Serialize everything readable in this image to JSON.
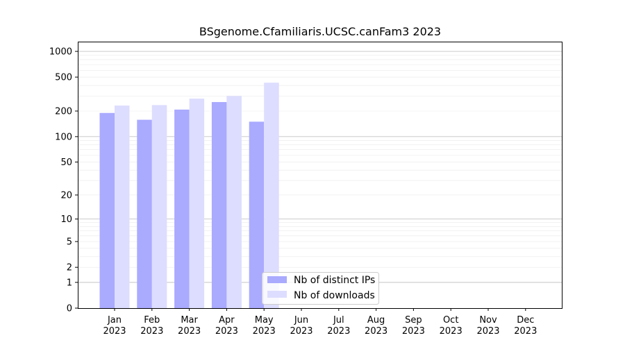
{
  "chart_data": {
    "type": "bar",
    "title": "BSgenome.Cfamiliaris.UCSC.canFam3 2023",
    "xlabel": "",
    "ylabel": "",
    "yscale": "log (log(1+y))",
    "categories": [
      [
        "Jan",
        "2023"
      ],
      [
        "Feb",
        "2023"
      ],
      [
        "Mar",
        "2023"
      ],
      [
        "Apr",
        "2023"
      ],
      [
        "May",
        "2023"
      ],
      [
        "Jun",
        "2023"
      ],
      [
        "Jul",
        "2023"
      ],
      [
        "Aug",
        "2023"
      ],
      [
        "Sep",
        "2023"
      ],
      [
        "Oct",
        "2023"
      ],
      [
        "Nov",
        "2023"
      ],
      [
        "Dec",
        "2023"
      ]
    ],
    "series": [
      {
        "name": "Nb of distinct IPs",
        "color": "#aaaaff",
        "values": [
          190,
          158,
          208,
          255,
          150,
          null,
          null,
          null,
          null,
          null,
          null,
          null
        ]
      },
      {
        "name": "Nb of downloads",
        "color": "#ddddff",
        "values": [
          232,
          235,
          280,
          300,
          430,
          null,
          null,
          null,
          null,
          null,
          null,
          null
        ]
      }
    ],
    "yticks": [
      0,
      1,
      2,
      5,
      10,
      20,
      50,
      100,
      200,
      500,
      1000
    ],
    "ylim": [
      0,
      1300
    ],
    "grid": "y-axis, major and minor",
    "legend": "bottom-center"
  }
}
